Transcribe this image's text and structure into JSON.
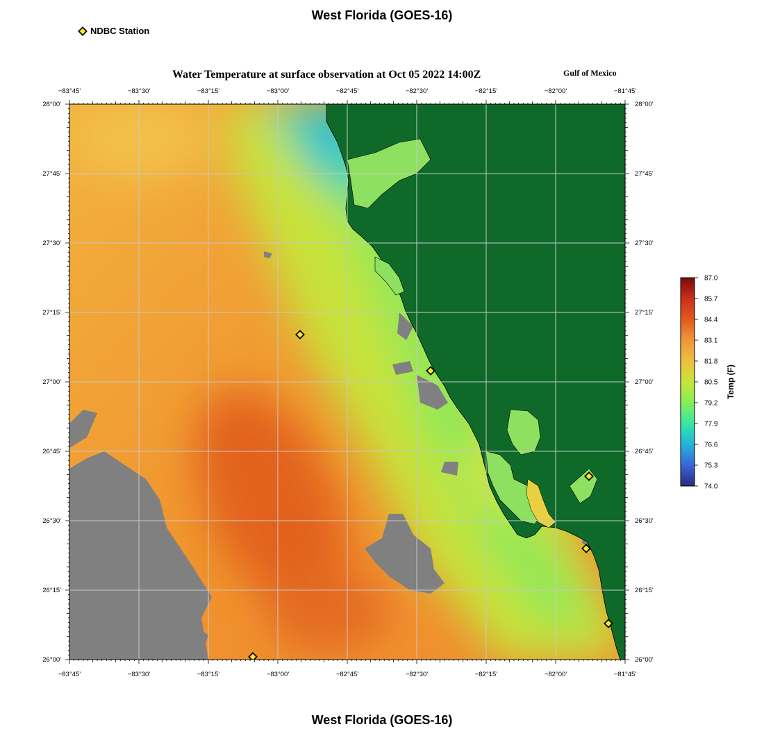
{
  "page_title": "West Florida (GOES-16)",
  "footer_title": "West Florida (GOES-16)",
  "legend": {
    "label": "NDBC Station",
    "marker_color": "#f7ec1f"
  },
  "map": {
    "title": "Water Temperature at surface observation at Oct 05 2022 14:00Z",
    "region_label": "Gulf of Mexico",
    "lon_labels": [
      "−83°45'",
      "−83°30'",
      "−83°15'",
      "−83°00'",
      "−82°45'",
      "−82°30'",
      "−82°15'",
      "−82°00'",
      "−81°45'"
    ],
    "lat_labels": [
      "28°00'",
      "27°45'",
      "27°30'",
      "27°15'",
      "27°00'",
      "26°45'",
      "26°30'",
      "26°15'",
      "26°00'"
    ],
    "colors": {
      "land": "#0f6a2a",
      "no_data": "#808080",
      "grid": "#c8c8c8"
    },
    "stations": [
      {
        "lat": 27.17,
        "lon": -82.92
      },
      {
        "lat": 27.04,
        "lon": -82.45
      },
      {
        "lat": 26.66,
        "lon": -81.88
      },
      {
        "lat": 26.4,
        "lon": -81.89
      },
      {
        "lat": 26.13,
        "lon": -81.81
      },
      {
        "lat": 26.01,
        "lon": -83.09
      }
    ]
  },
  "colorbar": {
    "title": "Temp (F)",
    "labels": [
      "87.0",
      "85.7",
      "84.4",
      "83.1",
      "81.8",
      "80.5",
      "79.2",
      "77.9",
      "76.6",
      "75.3",
      "74.0"
    ],
    "colors": [
      "#7a0a0a",
      "#c8301a",
      "#e25a1e",
      "#f0963a",
      "#eec040",
      "#c9e43a",
      "#86ee58",
      "#38e6a6",
      "#22b4de",
      "#3a66d6",
      "#2a2a80"
    ]
  }
}
